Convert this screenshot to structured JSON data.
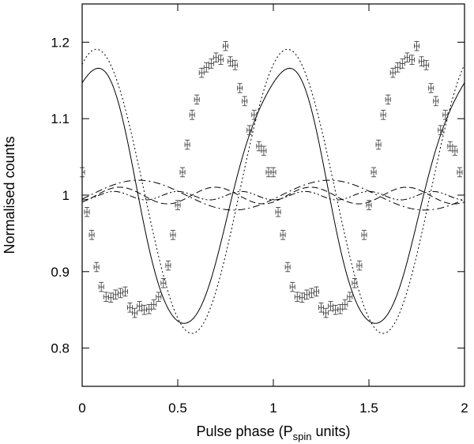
{
  "chart_data": {
    "type": "scatter",
    "title": "",
    "xlabel": "Pulse phase (P",
    "xlabel_sub": "spin",
    "xlabel_tail": " units)",
    "ylabel": "Normalised counts",
    "xlim": [
      0,
      2
    ],
    "ylim": [
      0.75,
      1.25
    ],
    "x_ticks": [
      0,
      0.5,
      1,
      1.5,
      2
    ],
    "x_tick_labels": [
      "0",
      "0.5",
      "1",
      "1.5",
      "2"
    ],
    "y_ticks": [
      0.8,
      0.9,
      1.0,
      1.1,
      1.2
    ],
    "y_tick_labels": [
      "0.8",
      "0.9",
      "1",
      "1.1",
      "1.2"
    ],
    "grid": false,
    "legend": "none",
    "data_points": {
      "name": "",
      "x_err": 0.0125,
      "y_err": 0.006,
      "x": [
        0.0,
        0.025,
        0.05,
        0.075,
        0.1,
        0.125,
        0.15,
        0.175,
        0.2,
        0.225,
        0.25,
        0.275,
        0.3,
        0.325,
        0.35,
        0.375,
        0.4,
        0.425,
        0.45,
        0.475,
        0.5,
        0.525,
        0.55,
        0.575,
        0.6,
        0.625,
        0.65,
        0.675,
        0.7,
        0.725,
        0.75,
        0.775,
        0.8,
        0.825,
        0.85,
        0.875,
        0.9,
        0.925,
        0.95,
        0.975
      ],
      "y": [
        1.03,
        0.978,
        0.948,
        0.906,
        0.88,
        0.867,
        0.866,
        0.87,
        0.872,
        0.874,
        0.853,
        0.846,
        0.855,
        0.85,
        0.851,
        0.857,
        0.867,
        0.885,
        0.908,
        0.948,
        0.987,
        1.03,
        1.066,
        1.105,
        1.125,
        1.16,
        1.167,
        1.172,
        1.18,
        1.177,
        1.195,
        1.175,
        1.17,
        1.14,
        1.123,
        1.085,
        1.105,
        1.064,
        1.058,
        1.03
      ]
    },
    "series": [
      {
        "style": "solid",
        "a0": 1.0,
        "harmonics": [
          [
            0.1623,
            0.0458
          ],
          [
            -0.0089,
            0.0082
          ],
          [
            -0.0066,
            -0.0002
          ]
        ]
      },
      {
        "style": "dotted",
        "a0": 1.005,
        "harmonics": [
          [
            0.1659,
            0.0835
          ]
        ]
      },
      {
        "style": "dash-dot",
        "a0": 1.0,
        "harmonics": [
          [
            -0.0052,
            0.0188
          ]
        ]
      },
      {
        "style": "dashed",
        "a0": 0.9995,
        "harmonics": [
          [
            0.0,
            0.0
          ],
          [
            -0.0085,
            0.0068
          ]
        ]
      },
      {
        "style": "dash-dot-dot",
        "a0": 0.9993,
        "harmonics": [
          [
            0.0,
            0.0
          ],
          [
            0.0,
            0.0
          ],
          [
            -0.0055,
            0.0
          ]
        ]
      }
    ]
  }
}
